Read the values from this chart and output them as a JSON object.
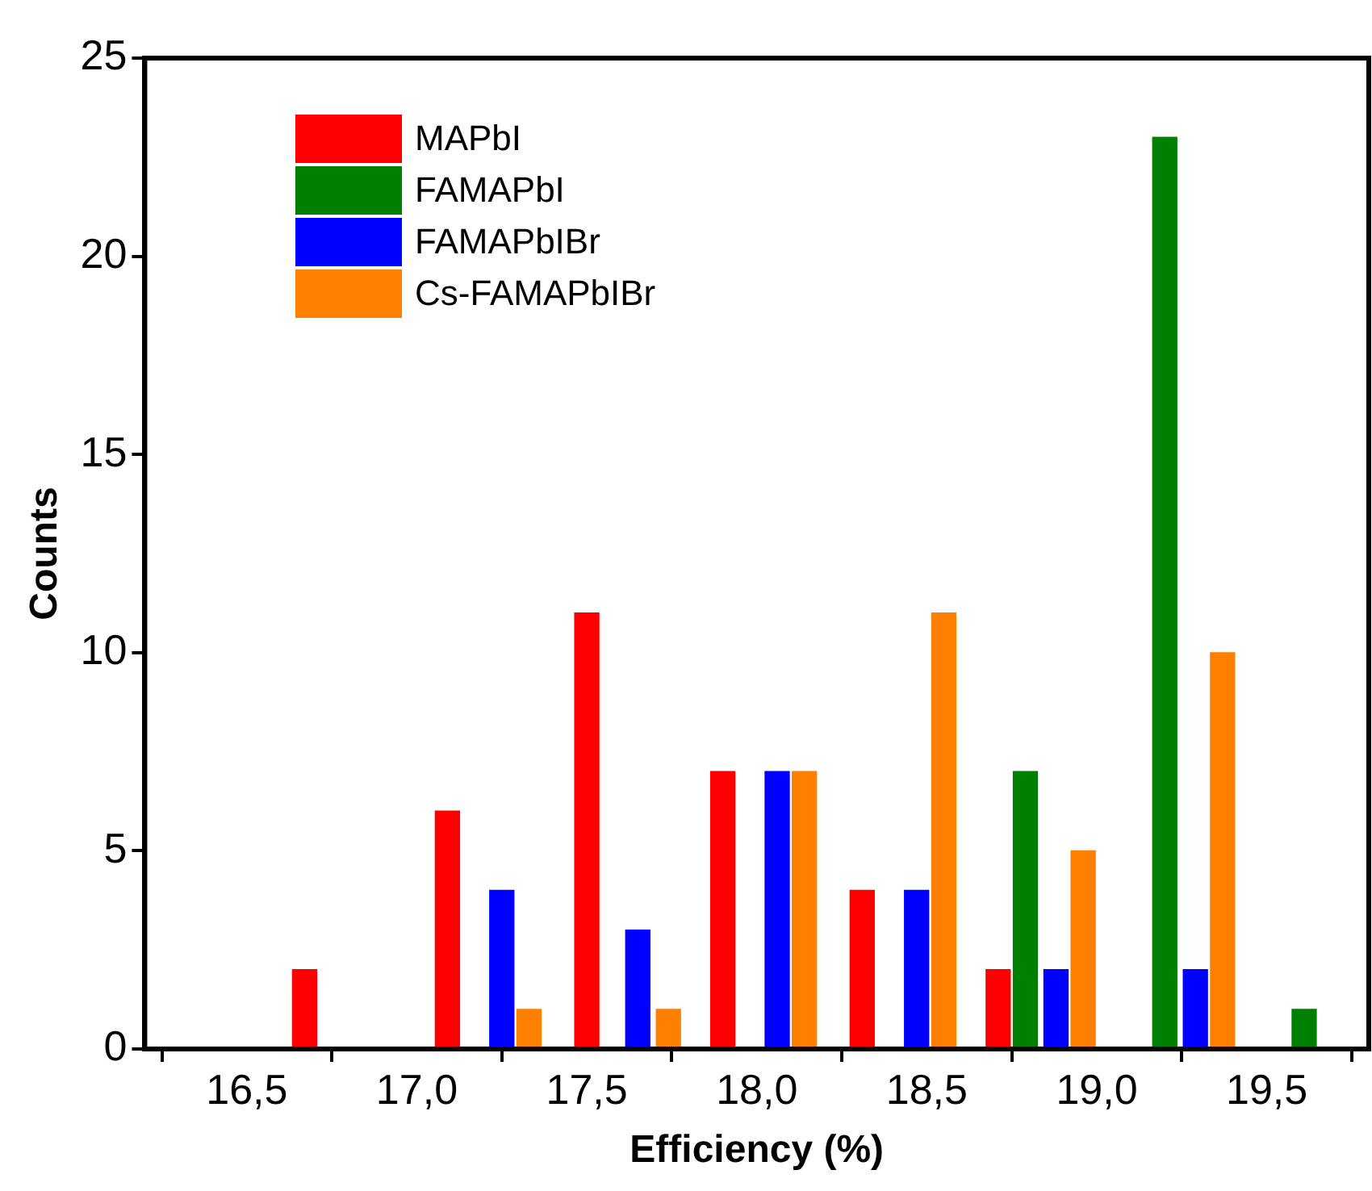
{
  "chart_data": {
    "type": "bar",
    "xlabel": "Efficiency (%)",
    "ylabel": "Counts",
    "xlim": [
      16.2,
      19.8
    ],
    "xticks": [
      {
        "value": 16.5,
        "label": "16,5"
      },
      {
        "value": 17.0,
        "label": "17,0"
      },
      {
        "value": 17.5,
        "label": "17,5"
      },
      {
        "value": 18.0,
        "label": "18,0"
      },
      {
        "value": 18.5,
        "label": "18,5"
      },
      {
        "value": 19.0,
        "label": "19,0"
      },
      {
        "value": 19.5,
        "label": "19,5"
      }
    ],
    "ylim": [
      0,
      25
    ],
    "yticks": [
      0,
      5,
      10,
      15,
      20,
      25
    ],
    "grid": false,
    "legend": "top left",
    "series": [
      {
        "name": "MAPbI",
        "color": "#ff0000",
        "x": [
          16.67,
          17.09,
          17.5,
          17.9,
          18.31,
          18.71
        ],
        "values": [
          2,
          6,
          11,
          7,
          4,
          2
        ]
      },
      {
        "name": "FAMAPbI",
        "color": "#008000",
        "x": [
          18.79,
          19.2,
          19.61
        ],
        "values": [
          7,
          23,
          1
        ]
      },
      {
        "name": "FAMAPbIBr",
        "color": "#0000ff",
        "x": [
          17.25,
          17.65,
          18.06,
          18.47,
          18.88,
          19.29
        ],
        "values": [
          4,
          3,
          7,
          4,
          2,
          2
        ]
      },
      {
        "name": "Cs-FAMAPbIBr",
        "color": "#ff8000",
        "x": [
          17.33,
          17.74,
          18.14,
          18.55,
          18.96,
          19.37
        ],
        "values": [
          1,
          1,
          7,
          11,
          5,
          10
        ]
      }
    ]
  }
}
